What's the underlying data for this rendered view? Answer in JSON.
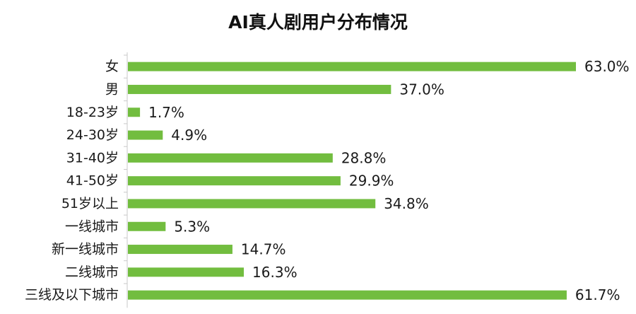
{
  "chart_data": {
    "type": "bar",
    "orientation": "horizontal",
    "title": "AI真人剧用户分布情况",
    "categories": [
      "女",
      "男",
      "18-23岁",
      "24-30岁",
      "31-40岁",
      "41-50岁",
      "51岁以上",
      "一线城市",
      "新一线城市",
      "二线城市",
      "三线及以下城市"
    ],
    "values": [
      63.0,
      37.0,
      1.7,
      4.9,
      28.8,
      29.9,
      34.8,
      5.3,
      14.7,
      16.3,
      61.7
    ],
    "value_labels": [
      "63.0%",
      "37.0%",
      "1.7%",
      "4.9%",
      "28.8%",
      "29.9%",
      "34.8%",
      "5.3%",
      "14.7%",
      "16.3%",
      "61.7%"
    ],
    "xlim": [
      0,
      63.0
    ],
    "grid": false,
    "legend": "none",
    "bar_color": "#72bd3f",
    "axis_color": "#c8c8c8"
  }
}
